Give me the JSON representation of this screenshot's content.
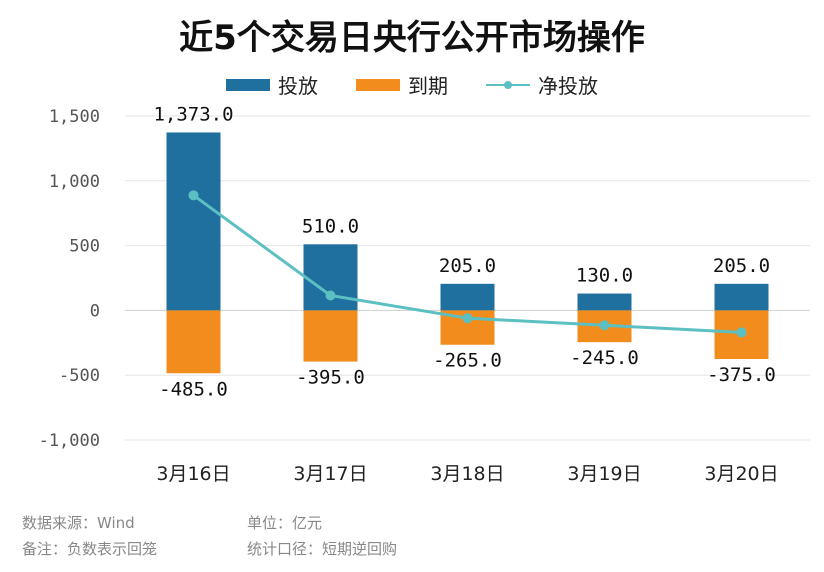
{
  "chart_data": {
    "type": "bar",
    "title": "近5个交易日央行公开市场操作",
    "categories": [
      "3月16日",
      "3月17日",
      "3月18日",
      "3月19日",
      "3月20日"
    ],
    "series": [
      {
        "name": "投放",
        "kind": "bar",
        "color": "#1f6f9f",
        "values": [
          1373.0,
          510.0,
          205.0,
          130.0,
          205.0
        ]
      },
      {
        "name": "到期",
        "kind": "bar",
        "color": "#f28c1c",
        "values": [
          -485.0,
          -395.0,
          -265.0,
          -245.0,
          -375.0
        ]
      },
      {
        "name": "净投放",
        "kind": "line",
        "color": "#5cbfc2",
        "values": [
          888.0,
          115.0,
          -60.0,
          -115.0,
          -170.0
        ]
      }
    ],
    "bar_labels_top": [
      "1,373.0",
      "510.0",
      "205.0",
      "130.0",
      "205.0"
    ],
    "bar_labels_bottom": [
      "-485.0",
      "-395.0",
      "-265.0",
      "-245.0",
      "-375.0"
    ],
    "yticks": [
      1500,
      1000,
      500,
      0,
      -500,
      -1000
    ],
    "ytick_labels": [
      "1,500",
      "1,000",
      "500",
      "0",
      "-500",
      "-1,000"
    ],
    "ylim": [
      -1000,
      1500
    ],
    "grid": true,
    "legend_position": "top-center"
  },
  "footer": {
    "source": "数据来源：Wind",
    "unit": "单位：亿元",
    "note": "备注：负数表示回笼",
    "caliber": "统计口径：短期逆回购"
  }
}
